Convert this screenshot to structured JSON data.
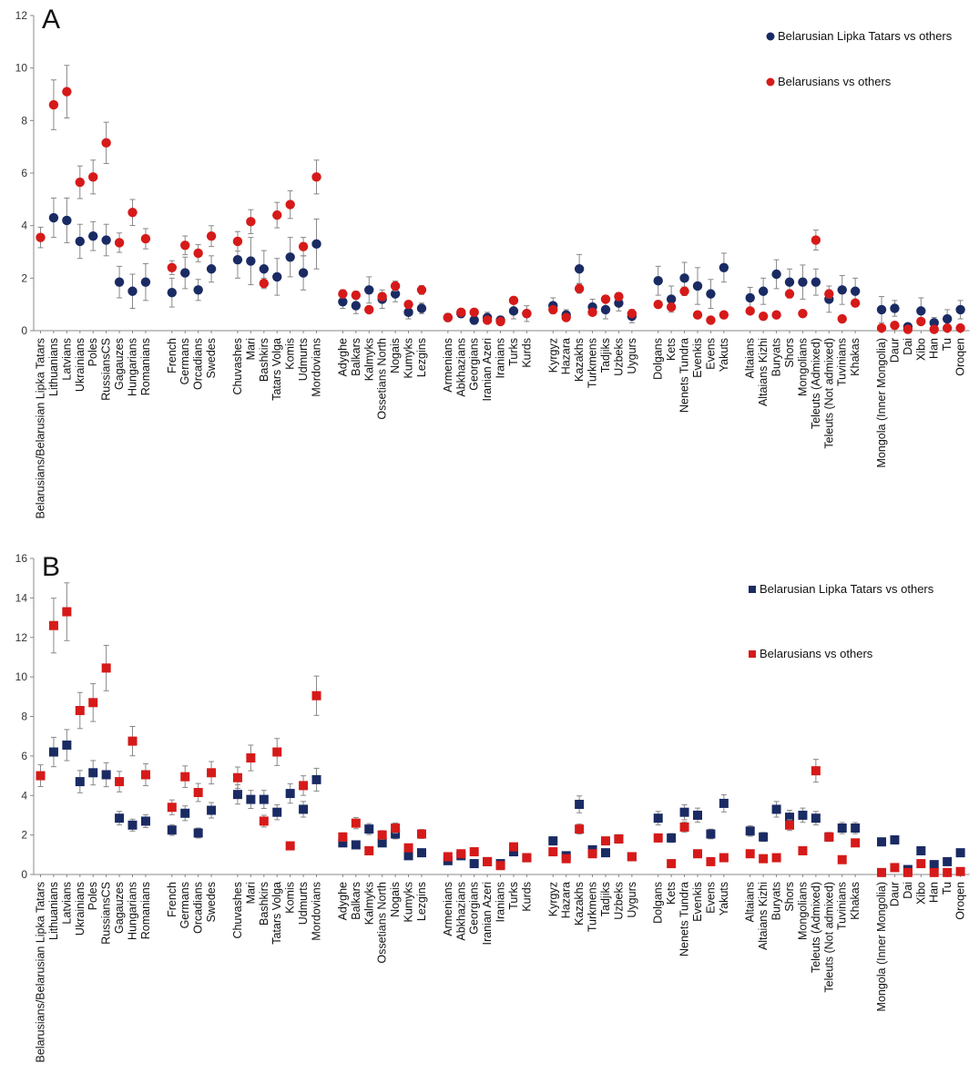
{
  "colors": {
    "tatars": "#1a2a63",
    "belarusians": "#d61a1a"
  },
  "chart_data": [
    {
      "type": "scatter",
      "panel": "A",
      "marker": "circle",
      "ylim": [
        0,
        12
      ],
      "yticks": [
        0,
        2,
        4,
        6,
        8,
        10,
        12
      ],
      "grid": false,
      "legend_placement": "top-right",
      "categories": [
        "Belarusians/Belarusian Lipka Tatars",
        "Lithuanians",
        "Latvians",
        "Ukrainians",
        "Poles",
        "RussiansCS",
        "Gagauzes",
        "Hungarians",
        "Romanians",
        "",
        "French",
        "Germans",
        "Orcadians",
        "Swedes",
        "",
        "Chuvashes",
        "Mari",
        "Bashkirs",
        "Tatars Volga",
        "Komis",
        "Udmurts",
        "Mordovians",
        "",
        "Adyghe",
        "Balkars",
        "Kalmyks",
        "Ossetians North",
        "Nogais",
        "Kumyks",
        "Lezgins",
        "",
        "Armenians",
        "Abkhazians",
        "Georgians",
        "Iranian Azeri",
        "Iranians",
        "Turks",
        "Kurds",
        "",
        "Kyrgyz",
        "Hazara",
        "Kazakhs",
        "Turkmens",
        "Tadjiks",
        "Uzbeks",
        "Uygurs",
        "",
        "Dolgans",
        "Kets",
        "Nenets Tundra",
        "Evenkis",
        "Evens",
        "Yakuts",
        "",
        "Altaians",
        "Altaians Kizhi",
        "Buryats",
        "Shors",
        "Mongolians",
        "Teleuts (Admixed)",
        "Teleuts (Not admixed)",
        "Tuvinians",
        "Khakas",
        "",
        "Mongola (Inner Mongolia)",
        "Daur",
        "Dai",
        "Xibo",
        "Han",
        "Tu",
        "Oroqen"
      ],
      "series": [
        {
          "name": "Belarusian Lipka Tatars  vs others",
          "values": [
            null,
            4.3,
            4.2,
            3.4,
            3.6,
            3.45,
            1.85,
            1.5,
            1.85,
            null,
            1.45,
            2.2,
            1.55,
            2.35,
            null,
            2.7,
            2.65,
            2.35,
            2.05,
            2.8,
            2.2,
            3.3,
            null,
            1.1,
            0.95,
            1.55,
            1.2,
            1.4,
            0.7,
            0.85,
            null,
            0.5,
            0.65,
            0.4,
            0.5,
            0.4,
            0.75,
            0.65,
            null,
            0.95,
            0.6,
            2.35,
            0.9,
            0.8,
            1.05,
            0.55,
            null,
            1.9,
            1.2,
            2.0,
            1.7,
            1.4,
            2.4,
            null,
            1.25,
            1.5,
            2.15,
            1.85,
            1.85,
            1.85,
            1.2,
            1.55,
            1.5,
            null,
            0.8,
            0.85,
            0.15,
            0.75,
            0.3,
            0.45,
            0.8
          ],
          "errors": [
            null,
            0.75,
            0.85,
            0.65,
            0.55,
            0.6,
            0.6,
            0.65,
            0.7,
            null,
            0.55,
            0.6,
            0.4,
            0.5,
            null,
            0.7,
            0.9,
            0.7,
            0.7,
            0.75,
            0.65,
            0.95,
            null,
            0.25,
            0.3,
            0.5,
            0.35,
            0.3,
            0.25,
            0.2,
            null,
            0.15,
            0.15,
            0.15,
            0.2,
            0.15,
            0.3,
            0.3,
            null,
            0.3,
            0.2,
            0.55,
            0.3,
            0.35,
            0.3,
            0.25,
            null,
            0.55,
            0.5,
            0.6,
            0.7,
            0.55,
            0.55,
            null,
            0.4,
            0.5,
            0.55,
            0.5,
            0.65,
            0.5,
            0.5,
            0.55,
            0.5,
            null,
            0.5,
            0.3,
            0.1,
            0.5,
            0.2,
            0.35,
            0.35
          ]
        },
        {
          "name": "Belarusians vs others",
          "values": [
            3.55,
            8.6,
            9.1,
            5.65,
            5.85,
            7.15,
            3.35,
            4.5,
            3.5,
            null,
            2.4,
            3.25,
            2.95,
            3.6,
            null,
            3.4,
            4.15,
            1.8,
            4.4,
            4.8,
            3.2,
            5.85,
            null,
            1.4,
            1.35,
            0.8,
            1.3,
            1.7,
            1.0,
            1.55,
            null,
            0.5,
            0.7,
            0.7,
            0.4,
            0.35,
            1.15,
            0.65,
            null,
            0.8,
            0.5,
            1.6,
            0.7,
            1.2,
            1.3,
            0.65,
            null,
            1.0,
            0.9,
            1.5,
            0.6,
            0.4,
            0.6,
            null,
            0.75,
            0.55,
            0.6,
            1.4,
            0.65,
            3.45,
            1.4,
            0.45,
            1.05,
            null,
            0.1,
            0.2,
            0.05,
            0.35,
            0.05,
            0.1,
            0.1
          ]
        }
      ]
    },
    {
      "type": "scatter",
      "panel": "B",
      "marker": "square",
      "ylim": [
        0,
        16
      ],
      "yticks": [
        0,
        2,
        4,
        6,
        8,
        10,
        12,
        14,
        16
      ],
      "grid": false,
      "legend_placement": "top-right",
      "categories": [
        "Belarusians/Belarusian Lipka Tatars",
        "Lithuanians",
        "Latvians",
        "Ukrainians",
        "Poles",
        "RussiansCS",
        "Gagauzes",
        "Hungarians",
        "Romanians",
        "",
        "French",
        "Germans",
        "Orcadians",
        "Swedes",
        "",
        "Chuvashes",
        "Mari",
        "Bashkirs",
        "Tatars Volga",
        "Komis",
        "Udmurts",
        "Mordovians",
        "",
        "Adyghe",
        "Balkars",
        "Kalmyks",
        "Ossetians North",
        "Nogais",
        "Kumyks",
        "Lezgins",
        "",
        "Armenians",
        "Abkhazians",
        "Georgians",
        "Iranian Azeri",
        "Iranians",
        "Turks",
        "Kurds",
        "",
        "Kyrgyz",
        "Hazara",
        "Kazakhs",
        "Turkmens",
        "Tadjiks",
        "Uzbeks",
        "Uygurs",
        "",
        "Dolgans",
        "Kets",
        "Nenets Tundra",
        "Evenkis",
        "Evens",
        "Yakuts",
        "",
        "Altaians",
        "Altaians Kizhi",
        "Buryats",
        "Shors",
        "Mongolians",
        "Teleuts (Admixed)",
        "Teleuts (Not admixed)",
        "Tuvinians",
        "Khakas",
        "",
        "Mongola (Inner Mongolia)",
        "Daur",
        "Dai",
        "Xibo",
        "Han",
        "Tu",
        "Oroqen"
      ],
      "series": [
        {
          "name": "Belarusian Lipka Tatars  vs others",
          "values": [
            null,
            6.2,
            6.55,
            4.7,
            5.15,
            5.05,
            2.85,
            2.5,
            2.7,
            null,
            2.25,
            3.1,
            2.1,
            3.25,
            null,
            4.05,
            3.8,
            3.8,
            3.15,
            4.1,
            3.3,
            4.8,
            null,
            1.6,
            1.5,
            2.3,
            1.6,
            2.05,
            0.95,
            1.1,
            null,
            0.7,
            0.95,
            0.55,
            0.65,
            0.55,
            1.15,
            0.85,
            null,
            1.7,
            0.95,
            3.55,
            1.25,
            1.1,
            1.8,
            0.9,
            null,
            2.85,
            1.85,
            3.15,
            3.0,
            2.05,
            3.6,
            null,
            2.2,
            1.9,
            3.3,
            2.9,
            3.0,
            2.85,
            1.9,
            2.35,
            2.35,
            null,
            1.65,
            1.75,
            0.25,
            1.2,
            0.5,
            0.65,
            1.1
          ]
        },
        {
          "name": "Belarusians vs others",
          "values": [
            5.0,
            12.6,
            13.3,
            8.3,
            8.7,
            10.45,
            4.7,
            6.75,
            5.05,
            null,
            3.4,
            4.95,
            4.15,
            5.15,
            null,
            4.9,
            5.9,
            2.7,
            6.2,
            1.45,
            4.5,
            9.05,
            null,
            1.9,
            2.6,
            1.2,
            2.0,
            2.35,
            1.35,
            2.05,
            null,
            0.9,
            1.05,
            1.15,
            0.65,
            0.45,
            1.4,
            0.85,
            null,
            1.15,
            0.8,
            2.3,
            1.05,
            1.7,
            1.8,
            0.9,
            null,
            1.85,
            0.55,
            2.4,
            1.05,
            0.65,
            0.85,
            null,
            1.05,
            0.8,
            0.85,
            2.5,
            1.2,
            5.25,
            1.9,
            0.75,
            1.6,
            null,
            0.1,
            0.35,
            0.1,
            0.55,
            0.1,
            0.1,
            0.15
          ]
        }
      ]
    }
  ]
}
